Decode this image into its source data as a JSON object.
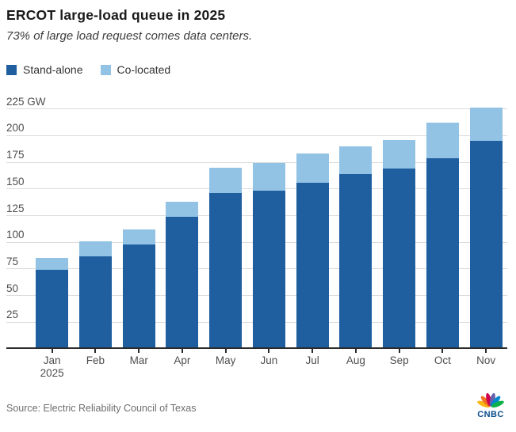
{
  "header": {
    "title": "ERCOT large-load queue in 2025",
    "subtitle": "73% of large load request comes data centers."
  },
  "legend": {
    "items": [
      {
        "label": "Stand-alone",
        "color": "#1f5fa0"
      },
      {
        "label": "Co-located",
        "color": "#92c3e5"
      }
    ]
  },
  "chart_data": {
    "type": "bar",
    "stacked": true,
    "title": "ERCOT large-load queue in 2025",
    "subtitle": "73% of large load request comes data centers.",
    "unit": "GW",
    "categories": [
      "Jan",
      "Feb",
      "Mar",
      "Apr",
      "May",
      "Jun",
      "Jul",
      "Aug",
      "Sep",
      "Oct",
      "Nov"
    ],
    "x_axis_year_label": "2025",
    "series": [
      {
        "name": "Stand-alone",
        "color": "#1f5fa0",
        "values": [
          74,
          87,
          98,
          124,
          146,
          148,
          156,
          164,
          169,
          179,
          195
        ]
      },
      {
        "name": "Co-located",
        "color": "#92c3e5",
        "values": [
          11,
          14,
          14,
          14,
          24,
          26,
          27,
          26,
          27,
          33,
          31
        ]
      }
    ],
    "totals": [
      85,
      101,
      112,
      138,
      170,
      174,
      183,
      190,
      196,
      212,
      226
    ],
    "yticks": [
      25,
      50,
      75,
      100,
      125,
      150,
      175,
      200,
      225
    ],
    "ytick_top_label": "225 GW",
    "ylim": [
      0,
      225
    ],
    "grid": true,
    "legend_position": "top-left",
    "axis_line_color": "#2b2b2b",
    "gridline_color": "#dcdcdc"
  },
  "footer": {
    "source": "Source: Electric Reliability Council of Texas",
    "logo": {
      "text": "CNBC",
      "text_color": "#0b4d8c",
      "peacock_colors": [
        "#FCB711",
        "#F37021",
        "#CC004C",
        "#6460AA",
        "#0089D0",
        "#0DB14B"
      ]
    }
  }
}
